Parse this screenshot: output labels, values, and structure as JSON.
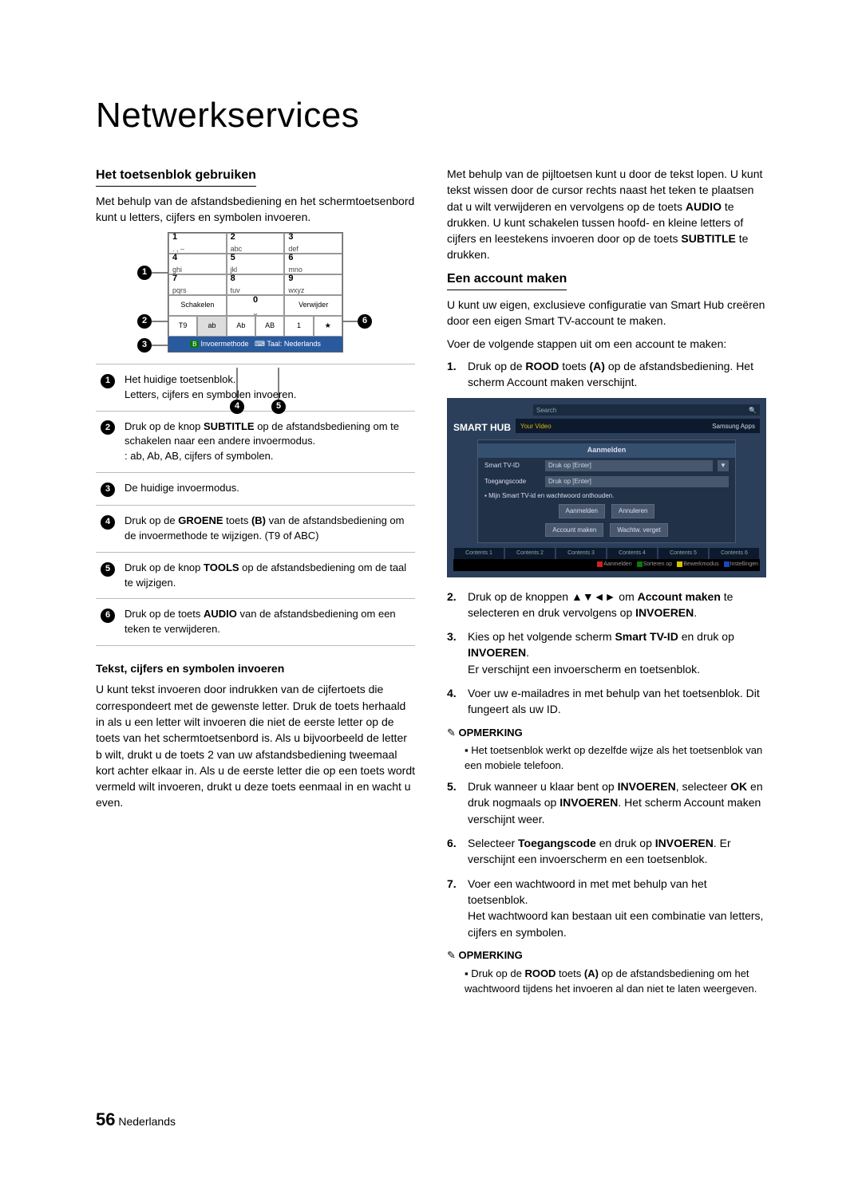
{
  "page_title": "Netwerkservices",
  "page_number": "56",
  "page_lang": "Nederlands",
  "left": {
    "h1": "Het toetsenblok gebruiken",
    "intro": "Met behulp van de afstandsbediening en het schermtoetsenbord kunt u letters, cijfers en symbolen invoeren.",
    "keypad": {
      "keys": [
        {
          "n": "1",
          "s": ". , –"
        },
        {
          "n": "2",
          "s": "abc"
        },
        {
          "n": "3",
          "s": "def"
        },
        {
          "n": "4",
          "s": "ghi"
        },
        {
          "n": "5",
          "s": "jkl"
        },
        {
          "n": "6",
          "s": "mno"
        },
        {
          "n": "7",
          "s": "pqrs"
        },
        {
          "n": "8",
          "s": "tuv"
        },
        {
          "n": "9",
          "s": "wxyz"
        }
      ],
      "row4": [
        "Schakelen",
        "0",
        "Verwijder"
      ],
      "modes": [
        "T9",
        "ab",
        "Ab",
        "AB",
        "1",
        "★"
      ],
      "footer_left": "B",
      "footer_mid": "Invoermethode",
      "footer_icon": "⌨",
      "footer_right": "Taal: Nederlands",
      "callouts": [
        "1",
        "2",
        "3",
        "4",
        "5",
        "6"
      ]
    },
    "legend": [
      {
        "n": "1",
        "t": "Het huidige toetsenblok.\nLetters, cijfers en symbolen invoeren."
      },
      {
        "n": "2",
        "t": "Druk op de knop <b>SUBTITLE</b> op de afstandsbediening om te schakelen naar een andere invoermodus.\n: ab, Ab, AB, cijfers of symbolen."
      },
      {
        "n": "3",
        "t": "De huidige invoermodus."
      },
      {
        "n": "4",
        "t": "Druk op de <b>GROENE</b> toets <b>(B)</b> van de afstandsbediening om de invoermethode te wijzigen. (T9 of ABC)"
      },
      {
        "n": "5",
        "t": "Druk op de knop <b>TOOLS</b> op de afstandsbediening om de taal te wijzigen."
      },
      {
        "n": "6",
        "t": "Druk op de toets <b>AUDIO</b> van de afstandsbediening om een teken te verwijderen."
      }
    ],
    "sub_h": "Tekst, cijfers en symbolen invoeren",
    "sub_p": "U kunt tekst invoeren door indrukken van de cijfertoets die correspondeert met de gewenste letter. Druk de toets herhaald in als u een letter wilt invoeren die niet de eerste letter op de toets van het schermtoetsenbord is. Als u bijvoorbeeld de letter b wilt, drukt u de toets 2 van uw afstandsbediening tweemaal kort achter elkaar in. Als u de eerste letter die op een toets wordt vermeld wilt invoeren, drukt u deze toets eenmaal in en wacht u even."
  },
  "right": {
    "top_p": "Met behulp van de pijltoetsen kunt u door de tekst lopen. U kunt tekst wissen door de cursor rechts naast het teken te plaatsen dat u wilt verwijderen en vervolgens op de toets <b>AUDIO</b> te drukken. U kunt schakelen tussen hoofd- en kleine letters of cijfers en leestekens invoeren door op de toets <b>SUBTITLE</b> te drukken.",
    "h2": "Een account maken",
    "p2": "U kunt uw eigen, exclusieve configuratie van Smart Hub creëren door een eigen Smart TV-account te maken.",
    "p3": "Voer de volgende stappen uit om een account te maken:",
    "step1": "Druk op de <b>ROOD</b> toets <b>(A)</b> op de afstandsbediening. Het scherm Account maken verschijnt.",
    "smarthub": {
      "logo": "SMART HUB",
      "search": "Search",
      "apps": "Samsung Apps",
      "login_title": "Aanmelden",
      "id_label": "Smart TV-ID",
      "id_ph": "Druk op [Enter]",
      "pw_label": "Toegangscode",
      "pw_ph": "Druk op [Enter]",
      "remember": "Mijn Smart TV-id en wachtwoord onthouden.",
      "btn_login": "Aanmelden",
      "btn_cancel": "Annuleren",
      "btn_create": "Account maken",
      "btn_forgot": "Wachtw. verget",
      "colorbar": [
        "Aanmelden",
        "Sorteren op",
        "Bewerkmodus",
        "Instellingen"
      ],
      "color_sq": [
        "#d02020",
        "#0a7a0a",
        "#d8c400",
        "#1448c0"
      ]
    },
    "step2": "Druk op de knoppen ▲▼◄► om <b>Account maken</b> te selecteren en druk vervolgens op <b>INVOEREN</b>.",
    "step3": "Kies op het volgende scherm <b>Smart TV-ID</b> en druk op <b>INVOEREN</b>.\nEr verschijnt een invoerscherm en toetsenblok.",
    "step4": "Voer uw e-mailadres in met behulp van het toetsenblok. Dit fungeert als uw ID.",
    "note1_h": "OPMERKING",
    "note1": "Het toetsenblok werkt op dezelfde wijze als het toetsenblok van een mobiele telefoon.",
    "step5": "Druk wanneer u klaar bent op <b>INVOEREN</b>, selecteer <b>OK</b> en druk nogmaals op <b>INVOEREN</b>. Het scherm Account maken verschijnt weer.",
    "step6": "Selecteer <b>Toegangscode</b> en druk op <b>INVOEREN</b>. Er verschijnt een invoerscherm en een toetsenblok.",
    "step7": "Voer een wachtwoord in met met behulp van het toetsenblok.\nHet wachtwoord kan bestaan uit een combinatie van letters, cijfers en symbolen.",
    "note2_h": "OPMERKING",
    "note2": "Druk op de <b>ROOD</b> toets <b>(A)</b> op de afstandsbediening om het wachtwoord tijdens het invoeren al dan niet te laten weergeven."
  }
}
